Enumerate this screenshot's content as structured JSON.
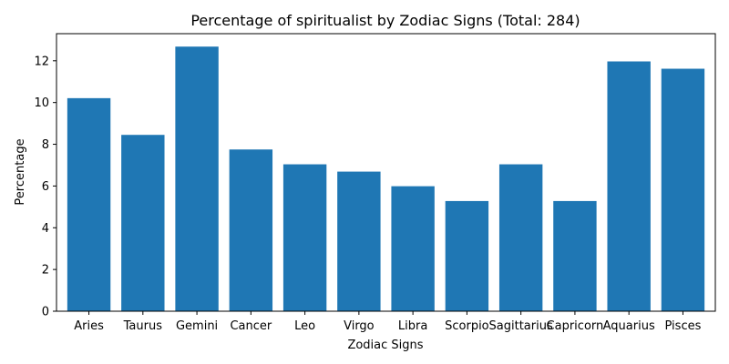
{
  "chart_data": {
    "type": "bar",
    "title": "Percentage of spiritualist by Zodiac Signs (Total: 284)",
    "xlabel": "Zodiac Signs",
    "ylabel": "Percentage",
    "categories": [
      "Aries",
      "Taurus",
      "Gemini",
      "Cancer",
      "Leo",
      "Virgo",
      "Libra",
      "Scorpio",
      "Sagittarius",
      "Capricorn",
      "Aquarius",
      "Pisces"
    ],
    "values": [
      10.21,
      8.45,
      12.68,
      7.75,
      7.04,
      6.69,
      5.99,
      5.28,
      7.04,
      5.28,
      11.97,
      11.62
    ],
    "ylim": [
      0,
      13.3
    ],
    "yticks": [
      0,
      2,
      4,
      6,
      8,
      10,
      12
    ],
    "grid": false,
    "bar_color": "#1f77b4"
  }
}
